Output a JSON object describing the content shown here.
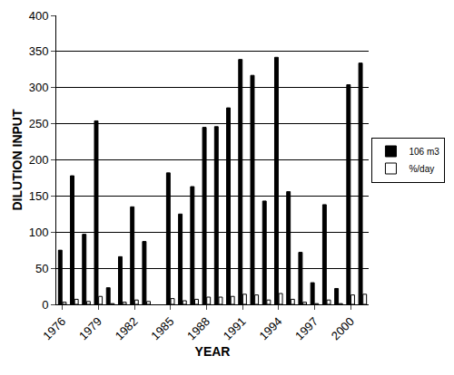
{
  "chart_data": {
    "type": "bar",
    "x_label": "YEAR",
    "y_label": "DILUTION INPUT",
    "x": [
      1976,
      1977,
      1978,
      1979,
      1980,
      1981,
      1982,
      1983,
      1984,
      1985,
      1986,
      1987,
      1988,
      1989,
      1990,
      1991,
      1992,
      1993,
      1994,
      1995,
      1996,
      1997,
      1998,
      1999,
      2000,
      2001
    ],
    "series": [
      {
        "name": "106 m3",
        "color": "#000000",
        "values": [
          75,
          178,
          97,
          254,
          23,
          66,
          135,
          87,
          null,
          182,
          125,
          163,
          245,
          246,
          272,
          339,
          317,
          143,
          342,
          156,
          72,
          30,
          138,
          22,
          304,
          334
        ]
      },
      {
        "name": "%/day",
        "color": "#ffffff",
        "values": [
          3,
          7,
          4,
          11,
          1,
          3,
          6,
          4,
          null,
          8,
          5,
          7,
          10,
          10,
          11,
          14,
          13,
          6,
          15,
          7,
          3,
          1,
          6,
          1,
          13,
          14
        ]
      }
    ],
    "xlim": [
      1975.5,
      2001.5
    ],
    "xticks": [
      1976,
      1979,
      1982,
      1985,
      1988,
      1991,
      1994,
      1997,
      2000
    ],
    "ylim": [
      0,
      400
    ],
    "yticks": [
      0,
      50,
      100,
      150,
      200,
      250,
      300,
      350,
      400
    ],
    "grid": true,
    "legend": "right"
  }
}
